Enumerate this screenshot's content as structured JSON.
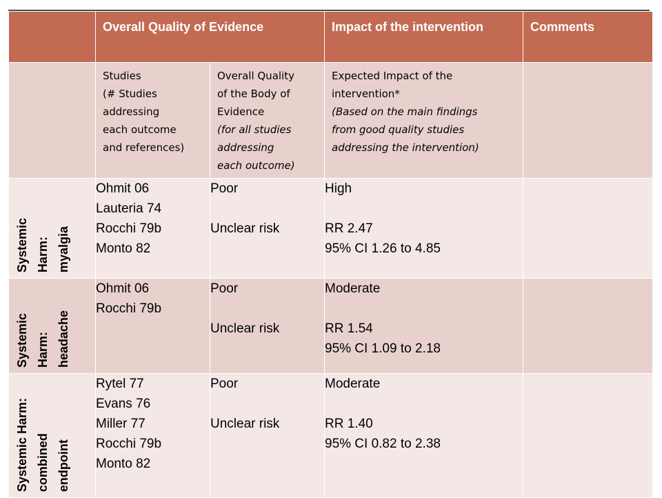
{
  "header": {
    "col1": "",
    "col2": "Overall Quality of Evidence",
    "col4": "Impact of the intervention",
    "col5": "Comments"
  },
  "subheader": {
    "studies": [
      "Studies",
      "(# Studies",
      "addressing",
      "each outcome",
      "and references)"
    ],
    "quality": [
      "Overall Quality",
      "of the Body of",
      "Evidence",
      " (for all studies",
      "addressing",
      "each outcome)"
    ],
    "impact": [
      "Expected Impact of the",
      "intervention*",
      "(Based on the main findings",
      "from good quality studies",
      "addressing the intervention)"
    ]
  },
  "rows": [
    {
      "label": [
        "Systemic",
        "Harm:",
        "myalgia"
      ],
      "studies": [
        "Ohmit 06",
        "Lauteria 74",
        "Rocchi 79b",
        "Monto 82"
      ],
      "quality": [
        "Poor",
        "Unclear risk"
      ],
      "impact": [
        "High",
        "RR 2.47",
        "95% CI 1.26 to 4.85"
      ],
      "comments": ""
    },
    {
      "label": [
        "Systemic",
        "Harm:",
        "headache"
      ],
      "studies": [
        "Ohmit 06",
        "Rocchi 79b"
      ],
      "quality": [
        "Poor",
        "Unclear risk"
      ],
      "impact": [
        "Moderate",
        "RR 1.54",
        "95% CI 1.09 to 2.18"
      ],
      "comments": ""
    },
    {
      "label": [
        "Systemic Harm:",
        "combined",
        "endpoint"
      ],
      "studies": [
        "Rytel 77",
        "Evans 76",
        "Miller 77",
        "Rocchi 79b",
        "Monto 82"
      ],
      "quality": [
        "Poor",
        "Unclear risk"
      ],
      "impact": [
        "Moderate",
        "RR 1.40",
        "95% CI 0.82 to 2.38"
      ],
      "comments": ""
    }
  ],
  "colors": {
    "header_bg": "#c36a53",
    "row_dark": "#e8d1cd",
    "row_light": "#f3e8e6"
  }
}
